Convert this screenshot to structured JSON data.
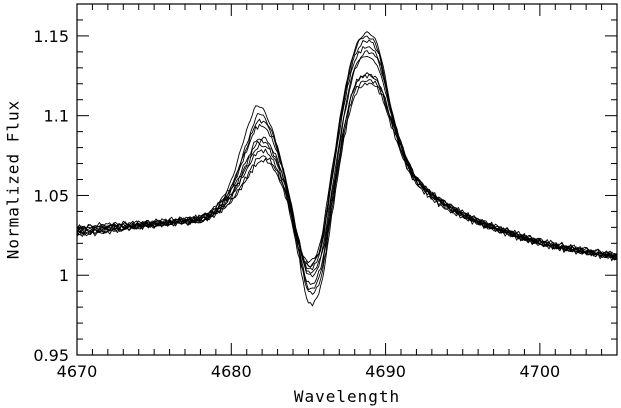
{
  "chart_data": {
    "type": "line",
    "title": "",
    "xlabel": "Wavelength",
    "ylabel": "Normalized Flux",
    "xlim": [
      4670,
      4705
    ],
    "ylim": [
      0.95,
      1.17
    ],
    "x_ticks": [
      4670,
      4680,
      4690,
      4700
    ],
    "x_tick_labels": [
      "4670",
      "4680",
      "4690",
      "4700"
    ],
    "y_ticks": [
      0.95,
      1,
      1.05,
      1.1,
      1.15
    ],
    "y_tick_labels": [
      "0.95",
      "1",
      "1.05",
      "1.1",
      "1.15"
    ],
    "x_minor_step": 1,
    "y_minor_step": 0.01,
    "grid": false,
    "legend": "none",
    "line_color": "#000000",
    "x": [
      4670,
      4672,
      4674,
      4676,
      4678,
      4679,
      4680,
      4681,
      4681.7,
      4682.5,
      4683.5,
      4684.3,
      4685,
      4685.8,
      4686.5,
      4687.3,
      4688,
      4688.8,
      4689.6,
      4690.5,
      4691.5,
      4692.5,
      4694,
      4696,
      4698,
      4700,
      4702,
      4705
    ],
    "series": [
      {
        "values": [
          1.028,
          1.03,
          1.032,
          1.033,
          1.036,
          1.043,
          1.06,
          1.09,
          1.107,
          1.095,
          1.06,
          1.022,
          1.005,
          1.018,
          1.06,
          1.11,
          1.142,
          1.152,
          1.14,
          1.1,
          1.07,
          1.055,
          1.044,
          1.034,
          1.027,
          1.021,
          1.017,
          1.012
        ]
      },
      {
        "values": [
          1.026,
          1.028,
          1.03,
          1.032,
          1.034,
          1.04,
          1.055,
          1.082,
          1.1,
          1.093,
          1.062,
          1.025,
          1.008,
          1.022,
          1.065,
          1.112,
          1.14,
          1.15,
          1.138,
          1.098,
          1.068,
          1.054,
          1.043,
          1.033,
          1.026,
          1.02,
          1.016,
          1.011
        ]
      },
      {
        "values": [
          1.03,
          1.031,
          1.033,
          1.034,
          1.037,
          1.042,
          1.053,
          1.072,
          1.085,
          1.082,
          1.058,
          1.025,
          1.0,
          1.01,
          1.048,
          1.098,
          1.128,
          1.14,
          1.132,
          1.098,
          1.07,
          1.056,
          1.045,
          1.035,
          1.028,
          1.022,
          1.018,
          1.013
        ]
      },
      {
        "values": [
          1.027,
          1.029,
          1.031,
          1.033,
          1.035,
          1.04,
          1.05,
          1.068,
          1.08,
          1.078,
          1.055,
          1.02,
          0.995,
          1.005,
          1.045,
          1.092,
          1.118,
          1.126,
          1.12,
          1.094,
          1.068,
          1.055,
          1.044,
          1.034,
          1.027,
          1.021,
          1.017,
          1.012
        ]
      },
      {
        "values": [
          1.025,
          1.027,
          1.03,
          1.032,
          1.034,
          1.038,
          1.047,
          1.062,
          1.073,
          1.072,
          1.052,
          1.018,
          0.99,
          0.998,
          1.04,
          1.088,
          1.115,
          1.122,
          1.117,
          1.092,
          1.066,
          1.053,
          1.042,
          1.033,
          1.026,
          1.02,
          1.016,
          1.011
        ]
      },
      {
        "values": [
          1.028,
          1.03,
          1.031,
          1.033,
          1.036,
          1.039,
          1.046,
          1.06,
          1.07,
          1.07,
          1.05,
          1.015,
          0.983,
          0.993,
          1.036,
          1.085,
          1.112,
          1.12,
          1.115,
          1.09,
          1.065,
          1.052,
          1.041,
          1.032,
          1.025,
          1.019,
          1.015,
          1.01
        ]
      },
      {
        "values": [
          1.029,
          1.031,
          1.032,
          1.034,
          1.036,
          1.041,
          1.051,
          1.07,
          1.083,
          1.08,
          1.057,
          1.022,
          1.002,
          1.012,
          1.052,
          1.1,
          1.13,
          1.137,
          1.128,
          1.096,
          1.069,
          1.055,
          1.044,
          1.034,
          1.027,
          1.021,
          1.017,
          1.012
        ]
      },
      {
        "values": [
          1.027,
          1.029,
          1.031,
          1.033,
          1.035,
          1.041,
          1.054,
          1.078,
          1.093,
          1.088,
          1.06,
          1.023,
          1.004,
          1.016,
          1.058,
          1.106,
          1.134,
          1.143,
          1.134,
          1.097,
          1.069,
          1.055,
          1.043,
          1.033,
          1.026,
          1.02,
          1.016,
          1.011
        ]
      },
      {
        "values": [
          1.026,
          1.028,
          1.03,
          1.032,
          1.034,
          1.039,
          1.049,
          1.066,
          1.077,
          1.075,
          1.053,
          1.019,
          0.992,
          1.002,
          1.043,
          1.091,
          1.119,
          1.125,
          1.119,
          1.093,
          1.067,
          1.054,
          1.043,
          1.033,
          1.026,
          1.02,
          1.016,
          1.011
        ]
      },
      {
        "values": [
          1.03,
          1.032,
          1.033,
          1.035,
          1.037,
          1.043,
          1.056,
          1.08,
          1.096,
          1.091,
          1.061,
          1.024,
          1.006,
          1.019,
          1.062,
          1.109,
          1.137,
          1.147,
          1.137,
          1.099,
          1.07,
          1.056,
          1.045,
          1.035,
          1.028,
          1.022,
          1.018,
          1.013
        ]
      }
    ]
  }
}
